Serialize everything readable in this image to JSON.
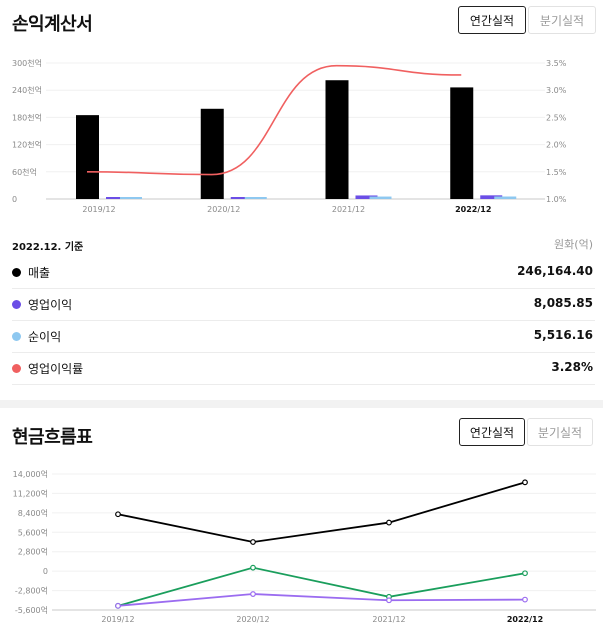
{
  "income": {
    "title": "손익계산서",
    "tabs": {
      "annual": "연간실적",
      "quarterly": "분기실적"
    },
    "basis": "2022.12. 기준",
    "unit": "원화(억)",
    "rows": [
      {
        "label": "매출",
        "value": "246,164.40",
        "color": "#000000"
      },
      {
        "label": "영업이익",
        "value": "8,085.85",
        "color": "#6b4ee6"
      },
      {
        "label": "순이익",
        "value": "5,516.16",
        "color": "#8ec8f0"
      },
      {
        "label": "영업이익률",
        "value": "3.28%",
        "color": "#f06060"
      }
    ]
  },
  "cash": {
    "title": "현금흐름표",
    "tabs": {
      "annual": "연간실적",
      "quarterly": "분기실적"
    }
  },
  "chart_data": [
    {
      "type": "bar",
      "categories": [
        "2019/12",
        "2020/12",
        "2021/12",
        "2022/12"
      ],
      "series": [
        {
          "name": "매출",
          "values": [
            185000,
            199000,
            262000,
            246164.4
          ],
          "color": "#000000"
        },
        {
          "name": "영업이익",
          "values": [
            2600,
            2200,
            7800,
            8085.85
          ],
          "color": "#6b4ee6"
        },
        {
          "name": "순이익",
          "values": [
            1300,
            1000,
            5400,
            5516.16
          ],
          "color": "#8ec8f0"
        }
      ],
      "line_series": {
        "name": "영업이익률",
        "values": [
          1.5,
          1.45,
          3.45,
          3.28
        ],
        "color": "#f06060",
        "axis": "right"
      },
      "yticks_left": [
        "0",
        "60천억",
        "120천억",
        "180천억",
        "240천억",
        "300천억"
      ],
      "ylim_left": [
        0,
        300000
      ],
      "yticks_right": [
        "1.0%",
        "1.5%",
        "2.0%",
        "2.5%",
        "3.0%",
        "3.5%"
      ],
      "ylim_right": [
        1.0,
        3.5
      ],
      "highlight_category": "2022/12"
    },
    {
      "type": "line",
      "categories": [
        "2019/12",
        "2020/12",
        "2021/12",
        "2022/12"
      ],
      "series": [
        {
          "values": [
            8200,
            4200,
            7000,
            12800
          ],
          "color": "#000000"
        },
        {
          "values": [
            -5000,
            500,
            -3700,
            -300
          ],
          "color": "#1a9e5c"
        },
        {
          "values": [
            -5000,
            -3300,
            -4200,
            -4100
          ],
          "color": "#9b6cf0"
        }
      ],
      "yticks": [
        "-5,600억",
        "-2,800억",
        "0",
        "2,800억",
        "5,600억",
        "8,400억",
        "11,200억",
        "14,000억"
      ],
      "ylim": [
        -5600,
        14000
      ],
      "highlight_category": "2022/12"
    }
  ]
}
